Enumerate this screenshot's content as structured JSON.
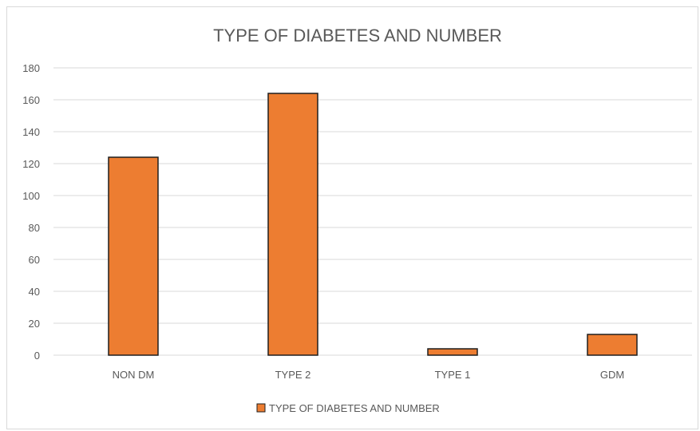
{
  "chart_data": {
    "type": "bar",
    "title": "TYPE OF DIABETES AND NUMBER",
    "categories": [
      "NON DM",
      "TYPE 2",
      "TYPE 1",
      "GDM"
    ],
    "series": [
      {
        "name": "TYPE OF DIABETES AND NUMBER",
        "values": [
          124,
          164,
          4,
          13
        ],
        "color": "#ED7D31",
        "stroke": "#1f1f1f"
      }
    ],
    "ylim": [
      0,
      180
    ],
    "yticks": [
      0,
      20,
      40,
      60,
      80,
      100,
      120,
      140,
      160,
      180
    ],
    "grid": true,
    "legend": "bottom",
    "xlabel": "",
    "ylabel": ""
  }
}
